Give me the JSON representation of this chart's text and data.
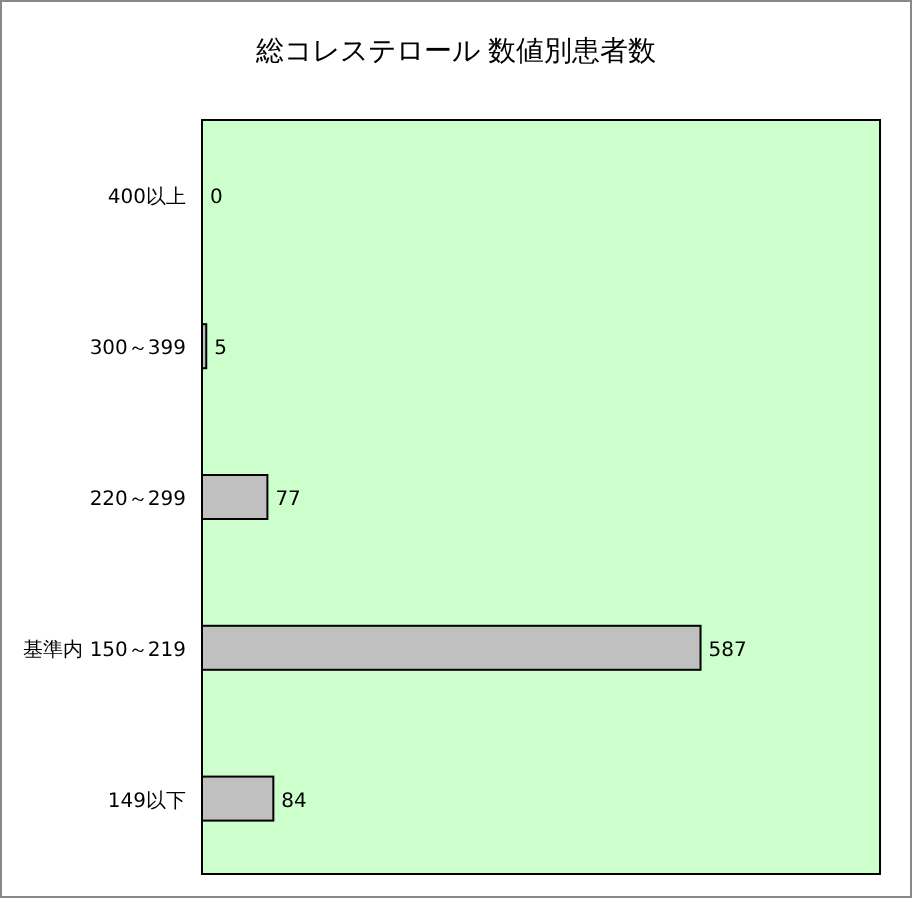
{
  "chart_data": {
    "type": "bar",
    "orientation": "horizontal",
    "title": "総コレステロール 数値別患者数",
    "categories": [
      "400以上",
      "300～399",
      "220～299",
      "基準内 150～219",
      "149以下"
    ],
    "values": [
      0,
      5,
      77,
      587,
      84
    ],
    "color": "#c0c0c0",
    "data_labels": true,
    "tick_labels": "y"
  }
}
